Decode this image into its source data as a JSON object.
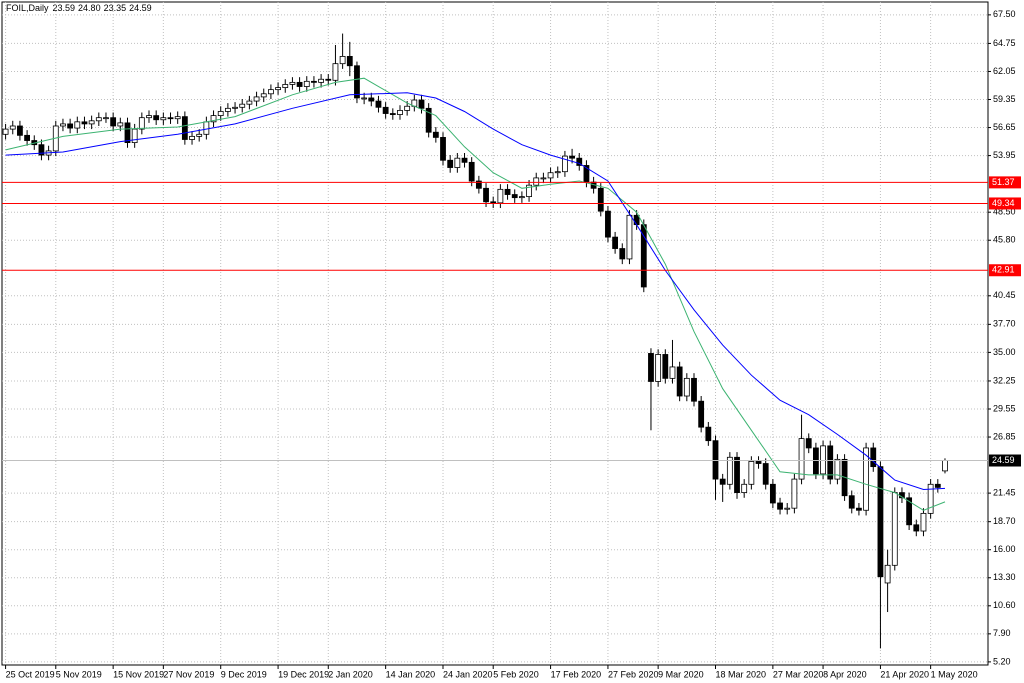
{
  "chart_data": {
    "type": "candlestick",
    "title": "FOIL,Daily",
    "header_ohlc": [
      "23.59",
      "24.80",
      "23.35",
      "24.59"
    ],
    "xlim": [
      -0.5,
      137
    ],
    "xticks": [
      {
        "value": 0,
        "label": "25 Oct 2019"
      },
      {
        "value": 7,
        "label": "5 Nov 2019"
      },
      {
        "value": 15,
        "label": "15 Nov 2019"
      },
      {
        "value": 22,
        "label": "27 Nov 2019"
      },
      {
        "value": 30,
        "label": "9 Dec 2019"
      },
      {
        "value": 38,
        "label": "19 Dec 2019"
      },
      {
        "value": 45,
        "label": "2 Jan 2020"
      },
      {
        "value": 53,
        "label": "14 Jan 2020"
      },
      {
        "value": 61,
        "label": "24 Jan 2020"
      },
      {
        "value": 68,
        "label": "5 Feb 2020"
      },
      {
        "value": 76,
        "label": "17 Feb 2020"
      },
      {
        "value": 84,
        "label": "27 Feb 2020"
      },
      {
        "value": 91,
        "label": "9 Mar 2020"
      },
      {
        "value": 99,
        "label": "18 Mar 2020"
      },
      {
        "value": 107,
        "label": "27 Mar 2020"
      },
      {
        "value": 114,
        "label": "8 Apr 2020"
      },
      {
        "value": 122,
        "label": "21 Apr 2020"
      },
      {
        "value": 129,
        "label": "1 May 2020"
      }
    ],
    "ylim": [
      4.9,
      68.45
    ],
    "yticks": [
      {
        "value": 67.5,
        "label": "67.50"
      },
      64.75,
      62.05,
      59.35,
      56.65,
      53.95,
      {
        "value": 48.5,
        "label": "48.50"
      },
      {
        "value": 45.8,
        "label": "45.80"
      },
      40.45,
      {
        "value": 37.7,
        "label": "37.70"
      },
      {
        "value": 35,
        "label": "35.00"
      },
      32.25,
      29.55,
      26.85,
      21.45,
      {
        "value": 18.7,
        "label": "18.70"
      },
      {
        "value": 16,
        "label": "16.00"
      },
      {
        "value": 13.3,
        "label": "13.30"
      },
      {
        "value": 10.6,
        "label": "10.60"
      },
      {
        "value": 7.9,
        "label": "7.90"
      },
      {
        "value": 5.2,
        "label": "5.20"
      }
    ],
    "grid": true,
    "up_color": "#ffffff",
    "down_color": "#000000",
    "open": [
      56.0,
      56.5,
      56.8,
      55.9,
      55.4,
      55.0,
      54.0,
      54.4,
      56.8,
      57.0,
      56.6,
      57.2,
      57.0,
      57.3,
      57.6,
      57.6,
      56.8,
      57.1,
      55.2,
      56.5,
      57.6,
      57.8,
      57.4,
      57.6,
      57.5,
      57.7,
      55.5,
      55.8,
      56.0,
      57.2,
      57.8,
      58.2,
      58.5,
      58.6,
      58.9,
      59.2,
      59.6,
      59.9,
      60.3,
      60.5,
      60.8,
      61.0,
      60.6,
      61.1,
      61.0,
      61.3,
      61.2,
      62.8,
      63.5,
      62.6,
      59.5,
      59.5,
      59.2,
      58.6,
      58.0,
      57.9,
      58.3,
      58.7,
      59.3,
      58.5,
      56.2,
      55.7,
      53.5,
      52.8,
      53.7,
      53.3,
      51.5,
      50.8,
      49.5,
      49.4,
      50.7,
      50.2,
      49.9,
      50.0,
      51.1,
      51.8,
      51.8,
      52.3,
      52.4,
      53.9,
      53.7,
      53.0,
      51.4,
      50.8,
      48.6,
      46.1,
      45.0,
      44.0,
      48.2,
      47.3,
      34.9,
      32.2,
      34.8,
      32.5,
      33.6,
      30.8,
      32.5,
      30.3,
      27.8,
      26.5,
      22.8,
      22.3,
      24.9,
      21.5,
      22.3,
      24.5,
      24.3,
      22.3,
      20.5,
      19.9,
      20.0,
      22.8,
      26.7,
      25.8,
      23.3,
      26.0,
      22.8,
      24.7,
      21.2,
      20.0,
      19.8,
      25.8,
      24.0,
      12.8,
      14.5,
      21.5,
      21.0,
      18.4,
      17.8,
      19.5,
      22.3,
      23.59
    ],
    "high": [
      57.0,
      57.3,
      57.3,
      56.4,
      55.9,
      55.5,
      54.9,
      57.3,
      57.5,
      57.5,
      57.7,
      57.7,
      57.8,
      58.1,
      58.1,
      58.1,
      57.6,
      57.6,
      57.0,
      58.1,
      58.3,
      58.3,
      58.1,
      58.1,
      58.2,
      58.2,
      56.3,
      56.5,
      57.7,
      58.3,
      58.7,
      59.0,
      59.1,
      59.4,
      59.7,
      60.1,
      60.4,
      60.8,
      61.0,
      61.3,
      61.5,
      61.5,
      61.6,
      61.6,
      61.8,
      61.8,
      64.6,
      65.7,
      64.9,
      63.0,
      60.0,
      60.0,
      59.7,
      59.1,
      58.5,
      58.8,
      59.2,
      59.8,
      59.8,
      59.0,
      56.7,
      56.2,
      54.0,
      54.2,
      54.2,
      53.8,
      52.0,
      51.3,
      50.0,
      51.2,
      51.2,
      50.7,
      50.5,
      51.6,
      52.3,
      52.3,
      52.8,
      52.9,
      54.4,
      54.6,
      54.2,
      53.5,
      51.9,
      51.3,
      49.1,
      46.6,
      45.5,
      48.7,
      48.7,
      47.8,
      35.4,
      35.3,
      35.3,
      36.2,
      34.1,
      33.0,
      33.0,
      30.8,
      28.3,
      27.0,
      23.3,
      25.4,
      25.4,
      22.8,
      25.0,
      25.0,
      24.8,
      22.8,
      21.0,
      20.5,
      23.3,
      29.0,
      27.2,
      26.3,
      26.5,
      26.5,
      25.2,
      25.2,
      21.7,
      20.5,
      26.3,
      26.3,
      24.5,
      16.0,
      22.0,
      22.0,
      21.5,
      18.9,
      20.0,
      22.8,
      22.8,
      24.8
    ],
    "low": [
      55.5,
      56.0,
      55.4,
      54.9,
      54.5,
      53.5,
      53.5,
      53.9,
      56.3,
      56.1,
      56.1,
      56.5,
      56.5,
      56.8,
      57.1,
      56.3,
      56.3,
      54.7,
      54.7,
      56.0,
      57.1,
      56.9,
      56.9,
      57.0,
      57.0,
      55.0,
      55.0,
      55.3,
      55.5,
      56.7,
      57.3,
      57.7,
      58.0,
      58.1,
      58.4,
      58.7,
      59.1,
      59.4,
      59.8,
      60.0,
      60.3,
      60.1,
      60.1,
      60.5,
      60.5,
      60.7,
      60.7,
      62.3,
      61.6,
      59.0,
      58.9,
      58.7,
      58.1,
      57.5,
      57.4,
      57.4,
      57.8,
      58.2,
      58.0,
      55.7,
      55.2,
      53.0,
      52.3,
      52.3,
      52.8,
      51.0,
      50.3,
      49.0,
      48.9,
      48.9,
      49.7,
      49.4,
      49.4,
      49.5,
      50.6,
      51.3,
      51.3,
      51.8,
      51.9,
      53.2,
      52.5,
      50.9,
      50.3,
      48.1,
      45.6,
      44.5,
      43.5,
      43.5,
      46.8,
      40.8,
      27.5,
      31.7,
      32.0,
      32.0,
      30.3,
      30.3,
      29.8,
      27.3,
      26.0,
      20.8,
      20.6,
      21.8,
      20.9,
      21.0,
      21.8,
      23.8,
      21.8,
      20.0,
      19.4,
      19.4,
      19.5,
      22.3,
      25.3,
      22.8,
      22.8,
      22.3,
      22.3,
      20.7,
      19.5,
      19.3,
      19.3,
      23.5,
      6.5,
      10.0,
      14.0,
      20.5,
      17.9,
      17.3,
      17.3,
      19.0,
      21.5,
      23.35
    ],
    "close": [
      56.5,
      56.8,
      55.9,
      55.4,
      55.0,
      54.0,
      54.4,
      56.8,
      57.0,
      56.6,
      57.2,
      57.0,
      57.3,
      57.6,
      57.6,
      56.8,
      57.1,
      55.2,
      56.5,
      57.6,
      57.8,
      57.4,
      57.6,
      57.5,
      57.7,
      55.5,
      55.8,
      56.0,
      57.2,
      57.8,
      58.2,
      58.5,
      58.6,
      58.9,
      59.2,
      59.6,
      59.9,
      60.3,
      60.5,
      60.8,
      61.0,
      60.6,
      61.1,
      61.0,
      61.3,
      61.2,
      62.8,
      63.5,
      62.6,
      59.5,
      59.5,
      59.2,
      58.6,
      58.0,
      57.9,
      58.3,
      58.7,
      59.3,
      58.5,
      56.2,
      55.7,
      53.5,
      52.8,
      53.7,
      53.3,
      51.5,
      50.8,
      49.5,
      49.4,
      50.7,
      50.2,
      49.9,
      50.0,
      51.1,
      51.8,
      51.8,
      52.3,
      52.4,
      53.9,
      53.7,
      53.0,
      51.4,
      50.8,
      48.6,
      46.1,
      45.0,
      44.0,
      48.2,
      47.3,
      41.3,
      32.2,
      34.8,
      32.5,
      33.6,
      30.8,
      32.5,
      30.3,
      27.8,
      26.5,
      22.8,
      22.3,
      24.9,
      21.5,
      22.3,
      24.5,
      24.3,
      22.3,
      20.5,
      19.9,
      20.0,
      22.8,
      26.7,
      25.8,
      23.3,
      26.0,
      22.8,
      24.7,
      21.2,
      20.0,
      19.8,
      25.8,
      24.0,
      13.4,
      14.5,
      21.5,
      21.0,
      18.4,
      17.8,
      19.5,
      22.3,
      22.0,
      24.59
    ],
    "lines": [
      {
        "color": "#3cb371",
        "x": [
          0,
          8,
          16,
          24,
          32,
          40,
          46,
          50,
          56,
          60,
          64,
          68,
          72,
          76,
          80,
          84,
          88,
          92,
          96,
          100,
          104,
          108,
          112,
          116,
          120,
          124,
          128,
          131
        ],
        "values": [
          54.5,
          55.8,
          56.5,
          56.7,
          57.7,
          59.8,
          61.0,
          61.4,
          59.0,
          57.8,
          54.8,
          52.3,
          50.8,
          51.2,
          51.5,
          50.8,
          48.5,
          43.5,
          37.0,
          31.5,
          27.5,
          23.5,
          23.2,
          23.2,
          22.3,
          21.5,
          19.8,
          20.6
        ]
      },
      {
        "color": "#0000ff",
        "x": [
          0,
          8,
          16,
          24,
          32,
          40,
          48,
          56,
          60,
          64,
          68,
          72,
          76,
          80,
          84,
          88,
          92,
          96,
          100,
          104,
          108,
          112,
          116,
          120,
          124,
          128,
          131
        ],
        "values": [
          54.0,
          54.3,
          55.3,
          56.0,
          57.0,
          58.5,
          59.8,
          60.0,
          59.5,
          58.2,
          56.5,
          55.0,
          54.0,
          53.2,
          51.5,
          47.3,
          42.9,
          39.1,
          35.7,
          32.8,
          30.4,
          29.0,
          27.1,
          25.1,
          22.7,
          21.8,
          21.9
        ]
      }
    ],
    "levels": [
      {
        "value": 51.37,
        "color": "#ff0000"
      },
      {
        "value": 49.34,
        "color": "#ff0000"
      },
      {
        "value": 42.91,
        "color": "#ff0000"
      }
    ],
    "last_color": "#c0c0c0"
  }
}
